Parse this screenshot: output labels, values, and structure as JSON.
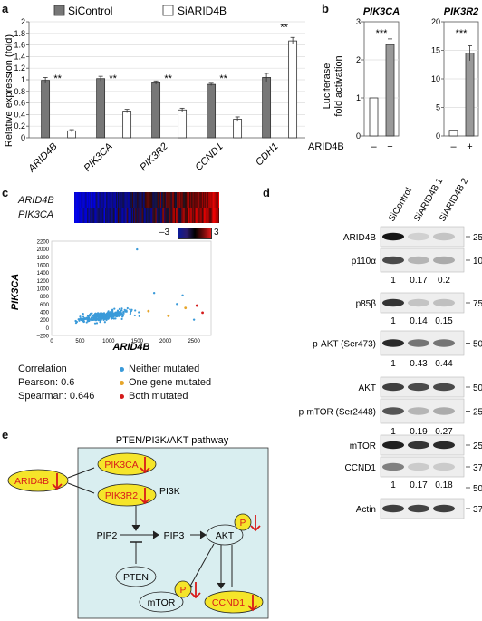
{
  "panel_a": {
    "letter": "a",
    "legend": [
      "SiControl",
      "SiARID4B"
    ],
    "ylabel": "Relative expression (fold)",
    "yticks": [
      "0",
      "0.2",
      "0.4",
      "0.6",
      "0.8",
      "1",
      "1.2",
      "1.4",
      "1.6",
      "1.8",
      "2"
    ],
    "sig": [
      "**",
      "**",
      "**",
      "**",
      "**"
    ]
  },
  "panel_b": {
    "letter": "b",
    "ylabel": "Luciferase\nfold activation",
    "row_label": "ARID4B",
    "minus": "–",
    "plus": "+",
    "sig": "***"
  },
  "panel_c": {
    "letter": "c",
    "heat_labels": [
      "ARID4B",
      "PIK3CA"
    ],
    "scale_min": "–3",
    "scale_max": "3",
    "xlabel": "ARID4B",
    "ylabel": "PIK3CA",
    "xticks": [
      "0",
      "500",
      "1000",
      "1500",
      "2000",
      "2500"
    ],
    "yticks": [
      "–200",
      "0",
      "200",
      "400",
      "600",
      "800",
      "1000",
      "1200",
      "1400",
      "1600",
      "1800",
      "2000",
      "2200"
    ],
    "correlation_title": "Correlation",
    "pearson": "Pearson: 0.6",
    "spearman": "Spearman: 0.646",
    "legend": [
      "Neither mutated",
      "One gene mutated",
      "Both mutated"
    ]
  },
  "panel_d": {
    "letter": "d",
    "lanes": [
      "SiControl",
      "SiARID4B 1",
      "SiARID4B 2"
    ],
    "rows": [
      {
        "label": "ARID4B",
        "marker": "250",
        "quant": []
      },
      {
        "label": "p110α",
        "marker": "100",
        "quant": [
          "1",
          "0.17",
          "0.2"
        ]
      },
      {
        "label": "p85β",
        "marker": "75",
        "quant": [
          "1",
          "0.14",
          "0.15"
        ]
      },
      {
        "label": "p-AKT (Ser473)",
        "marker": "50",
        "quant": [
          "1",
          "0.43",
          "0.44"
        ]
      },
      {
        "label": "AKT",
        "marker": "50",
        "quant": []
      },
      {
        "label": "p-mTOR (Ser2448)",
        "marker": "250",
        "quant": [
          "1",
          "0.19",
          "0.27"
        ]
      },
      {
        "label": "mTOR",
        "marker": "250",
        "quant": []
      },
      {
        "label": "CCND1",
        "marker": "37",
        "quant": [
          "1",
          "0.17",
          "0.18"
        ]
      },
      {
        "label": "Actin",
        "marker": "37",
        "quant": []
      }
    ],
    "extra_marker": "50"
  },
  "panel_e": {
    "letter": "e",
    "title": "PTEN/PI3K/AKT pathway",
    "arid4b": "ARID4B",
    "pik3ca": "PIK3CA",
    "pik3r2": "PIK3R2",
    "pi3k": "PI3K",
    "pip2": "PIP2",
    "pip3": "PIP3",
    "akt": "AKT",
    "pten": "PTEN",
    "mtor": "mTOR",
    "ccnd1": "CCND1",
    "p": "P"
  },
  "chart_data": [
    {
      "type": "bar",
      "panel": "a",
      "categories": [
        "ARID4B",
        "PIK3CA",
        "PIK3R2",
        "CCND1",
        "CDH1"
      ],
      "series": [
        {
          "name": "SiControl",
          "values": [
            0.99,
            1.02,
            0.95,
            0.92,
            1.04
          ],
          "errors": [
            0.05,
            0.04,
            0.03,
            0.02,
            0.07
          ]
        },
        {
          "name": "SiARID4B",
          "values": [
            0.12,
            0.46,
            0.48,
            0.32,
            1.67
          ],
          "errors": [
            0.02,
            0.03,
            0.03,
            0.04,
            0.06
          ]
        }
      ],
      "ylabel": "Relative expression (fold)",
      "ylim": [
        0,
        2
      ]
    },
    {
      "type": "bar",
      "panel": "b",
      "title": "PIK3CA",
      "categories": [
        "–",
        "+"
      ],
      "values": [
        1,
        2.4
      ],
      "errors": [
        0,
        0.15
      ],
      "ylim": [
        0,
        3
      ],
      "yticks": [
        "0",
        "1",
        "2",
        "3"
      ]
    },
    {
      "type": "bar",
      "panel": "b",
      "title": "PIK3R2",
      "categories": [
        "–",
        "+"
      ],
      "values": [
        1,
        14.5
      ],
      "errors": [
        0,
        1.3
      ],
      "ylim": [
        0,
        20
      ],
      "yticks": [
        "0",
        "5",
        "10",
        "15",
        "20"
      ]
    },
    {
      "type": "scatter",
      "panel": "c",
      "xlabel": "ARID4B",
      "ylabel": "PIK3CA",
      "xlim": [
        0,
        2800
      ],
      "ylim": [
        -200,
        2200
      ]
    }
  ]
}
